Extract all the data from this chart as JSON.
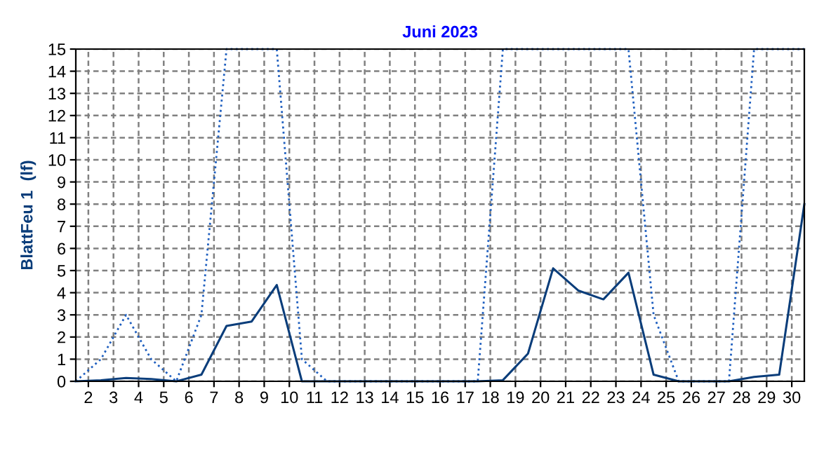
{
  "chart_data": {
    "type": "line",
    "title": "Juni 2023",
    "ylabel": "BlattFeu 1  (lf)",
    "x": [
      1.5,
      2.5,
      3.5,
      4.5,
      5.5,
      6.5,
      7.5,
      8.5,
      9.5,
      10.5,
      11.5,
      12.5,
      13.5,
      14.5,
      15.5,
      16.5,
      17.5,
      18.5,
      19.5,
      20.5,
      21.5,
      22.5,
      23.5,
      24.5,
      25.5,
      26.5,
      27.5,
      28.5,
      29.5,
      30.5
    ],
    "series": [
      {
        "color": "#1f5fbf",
        "line_style": "dotted",
        "values": [
          0,
          1,
          3,
          1,
          0,
          3,
          15,
          15,
          15,
          1,
          0,
          0,
          0,
          0,
          0,
          0,
          0,
          15,
          15,
          15,
          15,
          15,
          15,
          3,
          0,
          0,
          0,
          15,
          15,
          15
        ]
      },
      {
        "color": "#0a3d7a",
        "line_style": "solid",
        "values": [
          0,
          0.05,
          0.15,
          0.1,
          0,
          0.3,
          2.5,
          2.7,
          4.35,
          0,
          0,
          0,
          0,
          0,
          0,
          0,
          0,
          0.05,
          1.25,
          5.1,
          4.1,
          3.7,
          4.9,
          0.3,
          0,
          0,
          0,
          0.2,
          0.3,
          8.0
        ]
      }
    ],
    "xlim": [
      1.5,
      30.5
    ],
    "xticks": [
      2,
      3,
      4,
      5,
      6,
      7,
      8,
      9,
      10,
      11,
      12,
      13,
      14,
      15,
      16,
      17,
      18,
      19,
      20,
      21,
      22,
      23,
      24,
      25,
      26,
      27,
      28,
      29,
      30
    ],
    "ylim": [
      0,
      15
    ],
    "yticks": [
      0,
      1,
      2,
      3,
      4,
      5,
      6,
      7,
      8,
      9,
      10,
      11,
      12,
      13,
      14,
      15
    ],
    "grid": true,
    "marker": "none"
  }
}
